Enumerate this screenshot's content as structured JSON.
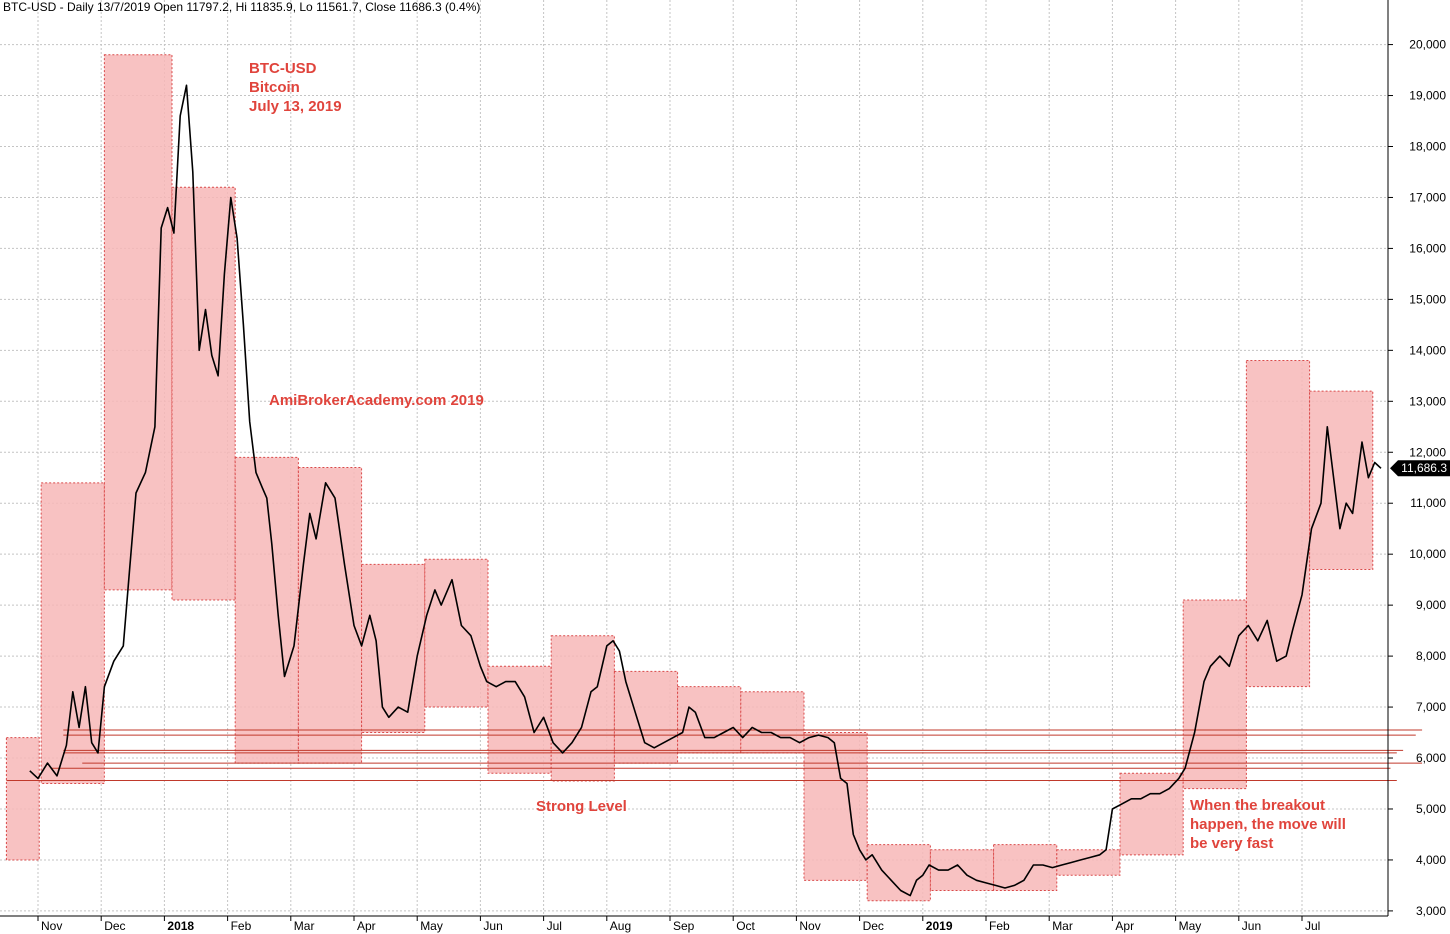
{
  "header": {
    "title": "BTC-USD - Daily 13/7/2019 Open 11797.2, Hi 11835.9, Lo 11561.7, Close 11686.3 (0.4%)"
  },
  "annotations": {
    "title_line1": "BTC-USD",
    "title_line2": "Bitcoin",
    "title_line3": "July 13, 2019",
    "watermark": "AmiBrokerAcademy.com  2019",
    "strong_level": "Strong Level",
    "breakout_line1": "When the breakout",
    "breakout_line2": "happen, the move will",
    "breakout_line3": "be very fast"
  },
  "chart_data": {
    "type": "line",
    "instrument": "BTC-USD",
    "interval": "Daily",
    "last_bar": {
      "date": "13/7/2019",
      "open": 11797.2,
      "high": 11835.9,
      "low": 11561.7,
      "close": 11686.3,
      "change_pct": 0.4
    },
    "last_price_label": "11,686.3",
    "ylim": [
      2900,
      20600
    ],
    "y_axis_side": "right",
    "y_ticks": [
      "3,000",
      "4,000",
      "5,000",
      "6,000",
      "7,000",
      "8,000",
      "9,000",
      "10,000",
      "11,000",
      "12,000",
      "13,000",
      "14,000",
      "15,000",
      "16,000",
      "17,000",
      "18,000",
      "19,000",
      "20,000"
    ],
    "y_tick_values": [
      3000,
      4000,
      5000,
      6000,
      7000,
      8000,
      9000,
      10000,
      11000,
      12000,
      13000,
      14000,
      15000,
      16000,
      17000,
      18000,
      19000,
      20000
    ],
    "x_ticks": [
      {
        "label": "Nov",
        "month": 1
      },
      {
        "label": "Dec",
        "month": 2
      },
      {
        "label": "2018",
        "month": 3,
        "bold": true
      },
      {
        "label": "Feb",
        "month": 4
      },
      {
        "label": "Mar",
        "month": 5
      },
      {
        "label": "Apr",
        "month": 6
      },
      {
        "label": "May",
        "month": 7
      },
      {
        "label": "Jun",
        "month": 8
      },
      {
        "label": "Jul",
        "month": 9
      },
      {
        "label": "Aug",
        "month": 10
      },
      {
        "label": "Sep",
        "month": 11
      },
      {
        "label": "Oct",
        "month": 12
      },
      {
        "label": "Nov",
        "month": 13
      },
      {
        "label": "Dec",
        "month": 14
      },
      {
        "label": "2019",
        "month": 15,
        "bold": true
      },
      {
        "label": "Feb",
        "month": 16
      },
      {
        "label": "Mar",
        "month": 17
      },
      {
        "label": "Apr",
        "month": 18
      },
      {
        "label": "May",
        "month": 19
      },
      {
        "label": "Jun",
        "month": 20
      },
      {
        "label": "Jul",
        "month": 21
      }
    ],
    "x_domain_months": [
      0.37,
      22.75
    ],
    "grid": true,
    "series": [
      {
        "values_note_free": true,
        "points": [
          [
            0.37,
            5750
          ],
          [
            0.5,
            5600
          ],
          [
            0.65,
            5900
          ],
          [
            0.8,
            5650
          ],
          [
            0.95,
            6250
          ],
          [
            1.05,
            7300
          ],
          [
            1.15,
            6600
          ],
          [
            1.25,
            7400
          ],
          [
            1.35,
            6300
          ],
          [
            1.45,
            6100
          ],
          [
            1.55,
            7400
          ],
          [
            1.7,
            7900
          ],
          [
            1.85,
            8200
          ],
          [
            1.95,
            9700
          ],
          [
            2.05,
            11200
          ],
          [
            2.2,
            11600
          ],
          [
            2.35,
            12500
          ],
          [
            2.45,
            16400
          ],
          [
            2.55,
            16800
          ],
          [
            2.65,
            16300
          ],
          [
            2.75,
            18600
          ],
          [
            2.85,
            19200
          ],
          [
            2.95,
            17500
          ],
          [
            3.05,
            14000
          ],
          [
            3.15,
            14800
          ],
          [
            3.25,
            13900
          ],
          [
            3.35,
            13500
          ],
          [
            3.45,
            15500
          ],
          [
            3.55,
            17000
          ],
          [
            3.65,
            16200
          ],
          [
            3.75,
            14500
          ],
          [
            3.85,
            12600
          ],
          [
            3.95,
            11600
          ],
          [
            4.05,
            11300
          ],
          [
            4.12,
            11100
          ],
          [
            4.2,
            10200
          ],
          [
            4.3,
            8800
          ],
          [
            4.4,
            7600
          ],
          [
            4.55,
            8200
          ],
          [
            4.7,
            9800
          ],
          [
            4.8,
            10800
          ],
          [
            4.9,
            10300
          ],
          [
            5.05,
            11400
          ],
          [
            5.2,
            11100
          ],
          [
            5.35,
            9800
          ],
          [
            5.5,
            8600
          ],
          [
            5.62,
            8200
          ],
          [
            5.75,
            8800
          ],
          [
            5.85,
            8300
          ],
          [
            5.95,
            7000
          ],
          [
            6.05,
            6800
          ],
          [
            6.2,
            7000
          ],
          [
            6.35,
            6900
          ],
          [
            6.5,
            8000
          ],
          [
            6.65,
            8800
          ],
          [
            6.78,
            9300
          ],
          [
            6.88,
            9000
          ],
          [
            7.05,
            9500
          ],
          [
            7.2,
            8600
          ],
          [
            7.35,
            8400
          ],
          [
            7.5,
            7800
          ],
          [
            7.6,
            7500
          ],
          [
            7.75,
            7400
          ],
          [
            7.9,
            7500
          ],
          [
            8.05,
            7500
          ],
          [
            8.2,
            7200
          ],
          [
            8.35,
            6500
          ],
          [
            8.5,
            6800
          ],
          [
            8.65,
            6300
          ],
          [
            8.8,
            6100
          ],
          [
            8.95,
            6300
          ],
          [
            9.1,
            6600
          ],
          [
            9.25,
            7300
          ],
          [
            9.35,
            7400
          ],
          [
            9.5,
            8200
          ],
          [
            9.6,
            8300
          ],
          [
            9.7,
            8100
          ],
          [
            9.8,
            7500
          ],
          [
            9.95,
            6900
          ],
          [
            10.1,
            6300
          ],
          [
            10.25,
            6200
          ],
          [
            10.4,
            6300
          ],
          [
            10.55,
            6400
          ],
          [
            10.7,
            6500
          ],
          [
            10.8,
            7000
          ],
          [
            10.9,
            6900
          ],
          [
            11.05,
            6400
          ],
          [
            11.2,
            6400
          ],
          [
            11.35,
            6500
          ],
          [
            11.5,
            6600
          ],
          [
            11.65,
            6400
          ],
          [
            11.8,
            6600
          ],
          [
            11.95,
            6500
          ],
          [
            12.1,
            6500
          ],
          [
            12.25,
            6400
          ],
          [
            12.4,
            6400
          ],
          [
            12.55,
            6300
          ],
          [
            12.7,
            6400
          ],
          [
            12.85,
            6450
          ],
          [
            13.0,
            6400
          ],
          [
            13.1,
            6300
          ],
          [
            13.2,
            5600
          ],
          [
            13.3,
            5500
          ],
          [
            13.4,
            4500
          ],
          [
            13.5,
            4200
          ],
          [
            13.6,
            4000
          ],
          [
            13.7,
            4100
          ],
          [
            13.85,
            3800
          ],
          [
            14.0,
            3600
          ],
          [
            14.15,
            3400
          ],
          [
            14.3,
            3300
          ],
          [
            14.4,
            3600
          ],
          [
            14.5,
            3700
          ],
          [
            14.6,
            3900
          ],
          [
            14.75,
            3800
          ],
          [
            14.9,
            3800
          ],
          [
            15.05,
            3900
          ],
          [
            15.2,
            3700
          ],
          [
            15.35,
            3600
          ],
          [
            15.5,
            3550
          ],
          [
            15.65,
            3500
          ],
          [
            15.8,
            3450
          ],
          [
            15.95,
            3500
          ],
          [
            16.1,
            3600
          ],
          [
            16.25,
            3900
          ],
          [
            16.4,
            3900
          ],
          [
            16.55,
            3850
          ],
          [
            16.7,
            3900
          ],
          [
            16.85,
            3950
          ],
          [
            17.0,
            4000
          ],
          [
            17.15,
            4050
          ],
          [
            17.3,
            4100
          ],
          [
            17.4,
            4200
          ],
          [
            17.5,
            5000
          ],
          [
            17.65,
            5100
          ],
          [
            17.8,
            5200
          ],
          [
            17.95,
            5200
          ],
          [
            18.1,
            5300
          ],
          [
            18.25,
            5300
          ],
          [
            18.4,
            5400
          ],
          [
            18.55,
            5600
          ],
          [
            18.65,
            5800
          ],
          [
            18.8,
            6500
          ],
          [
            18.95,
            7500
          ],
          [
            19.05,
            7800
          ],
          [
            19.2,
            8000
          ],
          [
            19.35,
            7800
          ],
          [
            19.5,
            8400
          ],
          [
            19.65,
            8600
          ],
          [
            19.8,
            8300
          ],
          [
            19.95,
            8700
          ],
          [
            20.1,
            7900
          ],
          [
            20.25,
            8000
          ],
          [
            20.35,
            8500
          ],
          [
            20.5,
            9200
          ],
          [
            20.65,
            10500
          ],
          [
            20.8,
            11000
          ],
          [
            20.9,
            12500
          ],
          [
            21.0,
            11500
          ],
          [
            21.1,
            10500
          ],
          [
            21.2,
            11000
          ],
          [
            21.3,
            10800
          ],
          [
            21.45,
            12200
          ],
          [
            21.55,
            11500
          ],
          [
            21.65,
            11800
          ],
          [
            21.75,
            11686
          ]
        ]
      }
    ],
    "zones": [
      {
        "x0": 0.0,
        "x1": 0.52,
        "top": 6400,
        "bottom": 4000
      },
      {
        "x0": 0.55,
        "x1": 1.55,
        "top": 11400,
        "bottom": 5500
      },
      {
        "x0": 1.55,
        "x1": 2.62,
        "top": 19800,
        "bottom": 9300
      },
      {
        "x0": 2.62,
        "x1": 3.62,
        "top": 17200,
        "bottom": 9100
      },
      {
        "x0": 3.62,
        "x1": 4.62,
        "top": 11900,
        "bottom": 5900
      },
      {
        "x0": 4.62,
        "x1": 5.62,
        "top": 11700,
        "bottom": 5900
      },
      {
        "x0": 5.62,
        "x1": 6.62,
        "top": 9800,
        "bottom": 6500
      },
      {
        "x0": 6.62,
        "x1": 7.62,
        "top": 9900,
        "bottom": 7000
      },
      {
        "x0": 7.62,
        "x1": 8.62,
        "top": 7800,
        "bottom": 5700
      },
      {
        "x0": 8.62,
        "x1": 9.62,
        "top": 8400,
        "bottom": 5550
      },
      {
        "x0": 9.62,
        "x1": 10.62,
        "top": 7700,
        "bottom": 5900
      },
      {
        "x0": 10.62,
        "x1": 11.62,
        "top": 7400,
        "bottom": 6100
      },
      {
        "x0": 11.62,
        "x1": 12.62,
        "top": 7300,
        "bottom": 6100
      },
      {
        "x0": 12.62,
        "x1": 13.62,
        "top": 6500,
        "bottom": 3600
      },
      {
        "x0": 13.62,
        "x1": 14.62,
        "top": 4300,
        "bottom": 3200
      },
      {
        "x0": 14.62,
        "x1": 15.62,
        "top": 4200,
        "bottom": 3400
      },
      {
        "x0": 15.62,
        "x1": 16.62,
        "top": 4300,
        "bottom": 3400
      },
      {
        "x0": 16.62,
        "x1": 17.62,
        "top": 4200,
        "bottom": 3700
      },
      {
        "x0": 17.62,
        "x1": 18.62,
        "top": 5700,
        "bottom": 4100
      },
      {
        "x0": 18.62,
        "x1": 19.62,
        "top": 9100,
        "bottom": 5400
      },
      {
        "x0": 19.62,
        "x1": 20.62,
        "top": 13800,
        "bottom": 7400
      },
      {
        "x0": 20.62,
        "x1": 21.62,
        "top": 13200,
        "bottom": 9700
      }
    ],
    "levels": [
      {
        "value": 6550,
        "x0": 0.9,
        "x1": 22.4
      },
      {
        "value": 6450,
        "x0": 0.9,
        "x1": 22.3
      },
      {
        "value": 6150,
        "x0": 0.9,
        "x1": 22.1
      },
      {
        "value": 6100,
        "x0": 0.9,
        "x1": 22.0
      },
      {
        "value": 5900,
        "x0": 1.2,
        "x1": 22.4
      },
      {
        "value": 5800,
        "x0": 0.7,
        "x1": 21.9
      },
      {
        "value": 5560,
        "x0": 0.0,
        "x1": 22.0
      }
    ],
    "colors": {
      "zone_fill": "#f7b7b7",
      "zone_border": "#d94a4a",
      "level_line": "#c0392b",
      "price_line": "#000000",
      "grid": "#c4c4c4",
      "annotation": "#e0443c",
      "price_label_bg": "#000000",
      "price_label_fg": "#ffffff"
    }
  }
}
